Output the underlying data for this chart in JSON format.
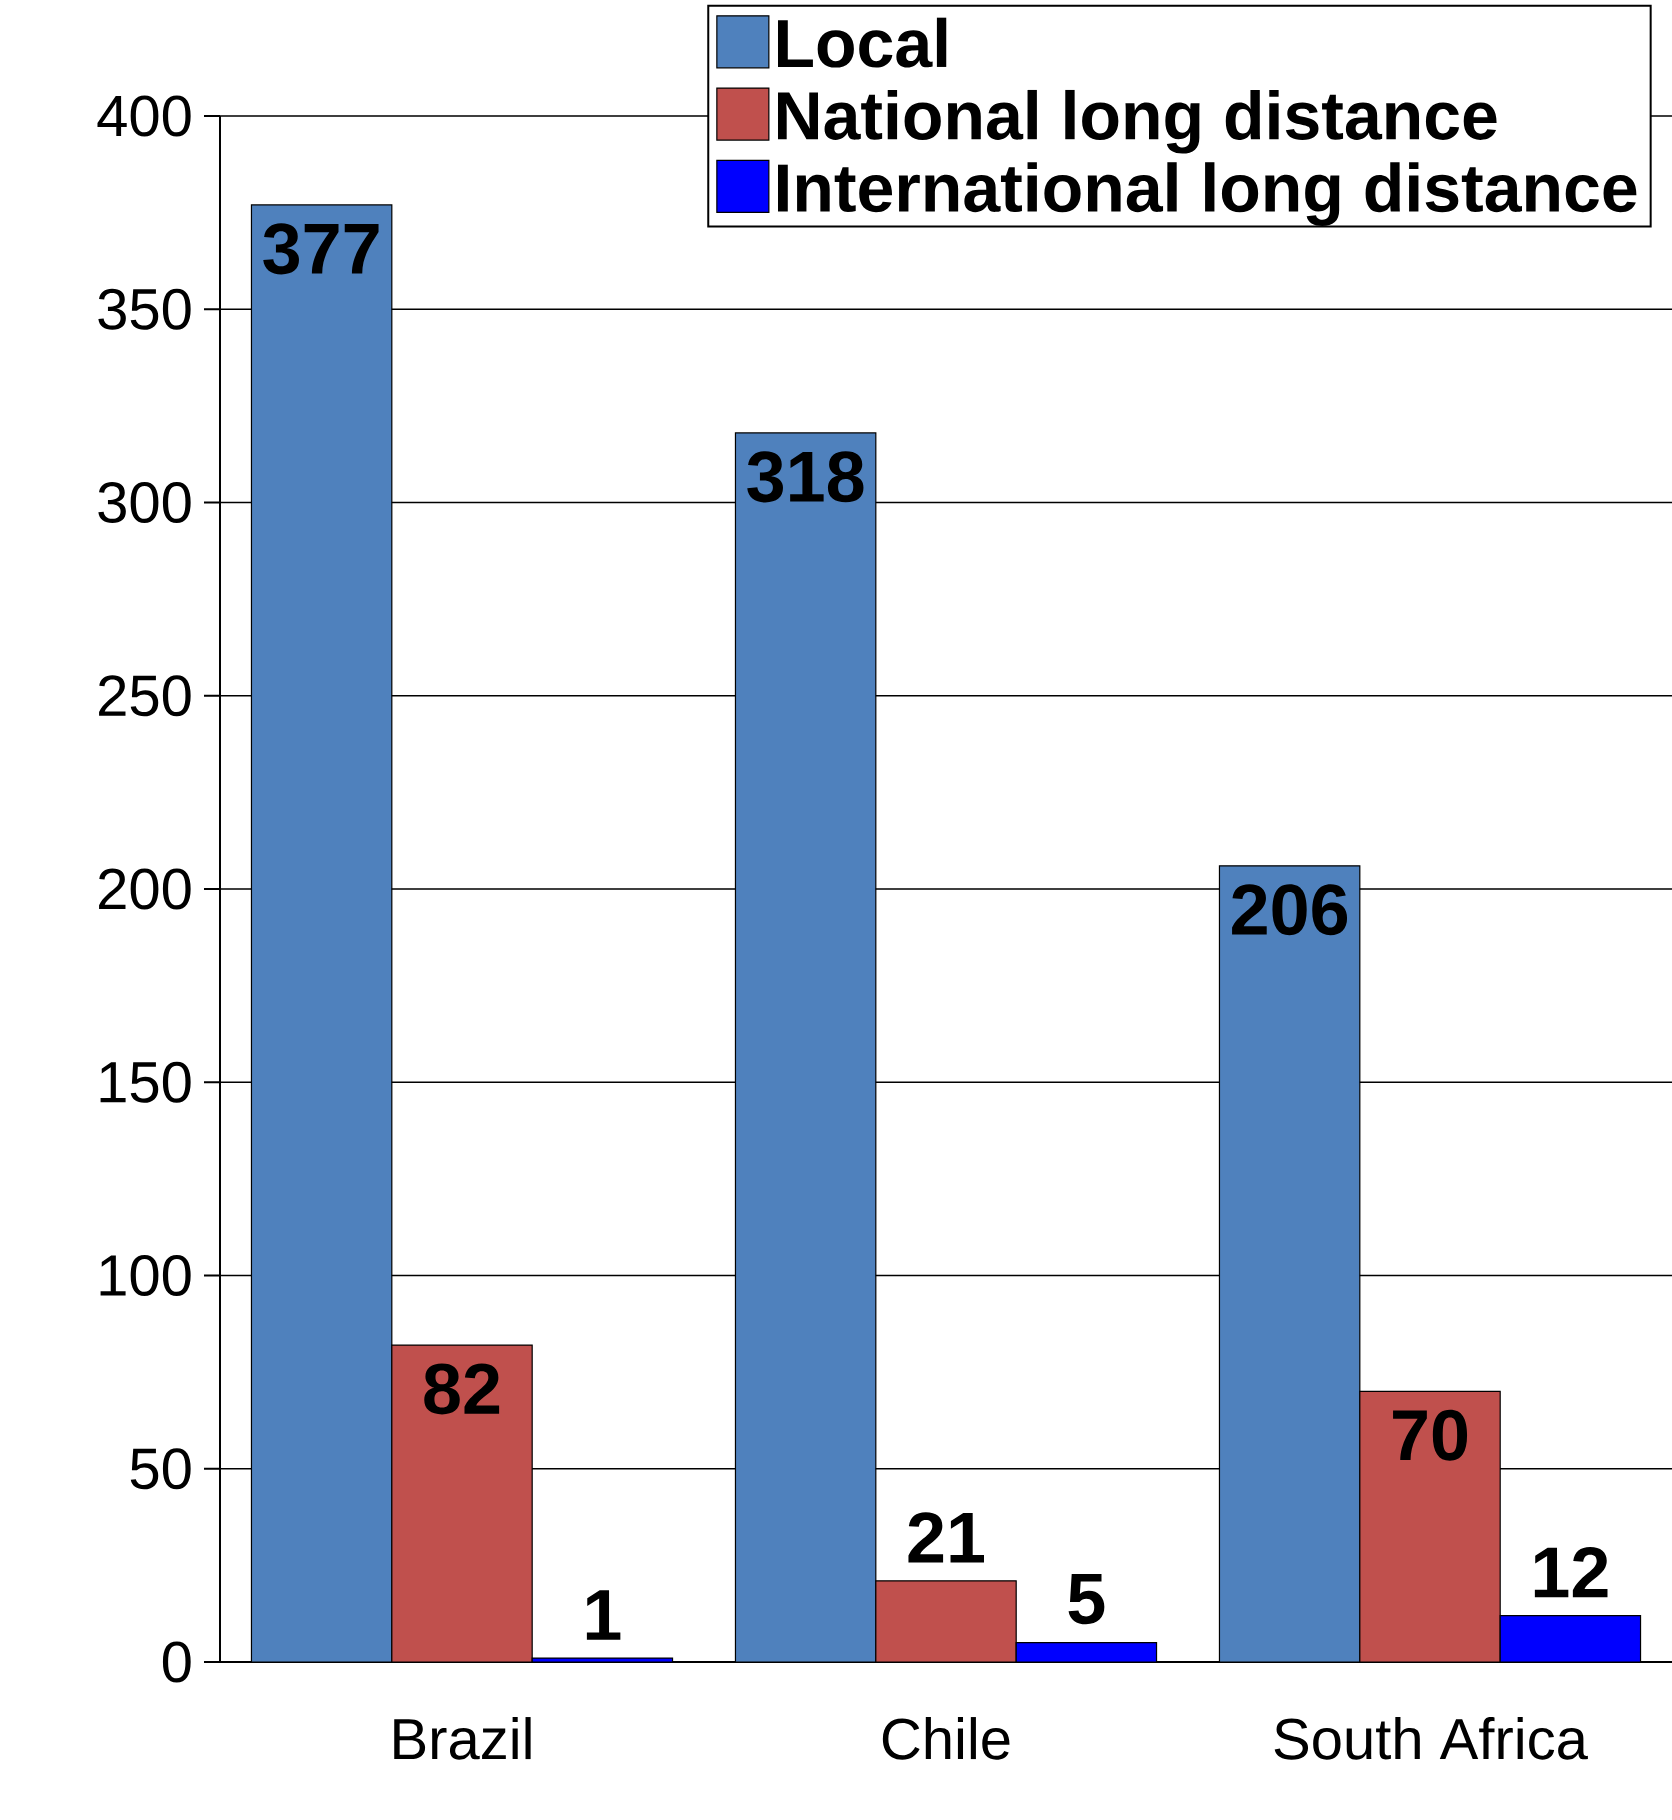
{
  "chart_data": {
    "type": "bar",
    "categories": [
      "Brazil",
      "Chile",
      "South Africa"
    ],
    "series": [
      {
        "name": "Local",
        "color": "#4f81bd",
        "values": [
          377,
          318,
          206
        ]
      },
      {
        "name": "National long distance",
        "color": "#c0504d",
        "values": [
          82,
          21,
          70
        ]
      },
      {
        "name": "International long distance",
        "color": "#0000ff",
        "values": [
          1,
          5,
          12
        ]
      }
    ],
    "ylim": [
      0,
      400
    ],
    "yticks": [
      0,
      50,
      100,
      150,
      200,
      250,
      300,
      350,
      400
    ],
    "grid": "y",
    "legend": "top right",
    "data_labels": true
  }
}
